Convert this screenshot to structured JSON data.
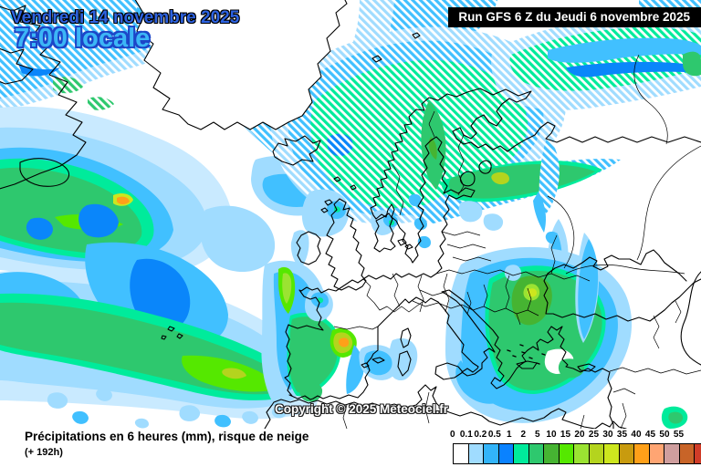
{
  "header": {
    "date_line": "Vendredi 14 novembre 2025",
    "time_line": "7:00 locale",
    "run_label": "Run GFS 6 Z du Jeudi 6 novembre 2025"
  },
  "map": {
    "copyright": "Copyright © 2025 Meteociel.fr",
    "region": "Europe / North Atlantic"
  },
  "footer": {
    "caption_line1": "Précipitations en 6 heures (mm), risque de neige",
    "caption_line2": "(+ 192h)"
  },
  "legend": {
    "labels": [
      "0",
      "0.1",
      "0.2",
      "0.5",
      "1",
      "2",
      "5",
      "10",
      "15",
      "20",
      "25",
      "30",
      "35",
      "40",
      "45",
      "50",
      "55"
    ],
    "colors": [
      "#ffffff",
      "#a0dcff",
      "#32b4fa",
      "#0a82ff",
      "#00eb9b",
      "#2ec86e",
      "#46b432",
      "#55e800",
      "#9be332",
      "#b4d41e",
      "#cde61e",
      "#c89b0f",
      "#ffa019",
      "#ffa573",
      "#cf9e9e",
      "#c86428",
      "#d03c28"
    ],
    "accent_colors": {
      "precip_light": "#a0dcff",
      "precip_cyan": "#41c0ff",
      "precip_blue": "#0a86fa",
      "precip_green": "#2ec86e",
      "title_blue": "#2d62e0",
      "time_cyan": "#3cb6f6"
    }
  }
}
